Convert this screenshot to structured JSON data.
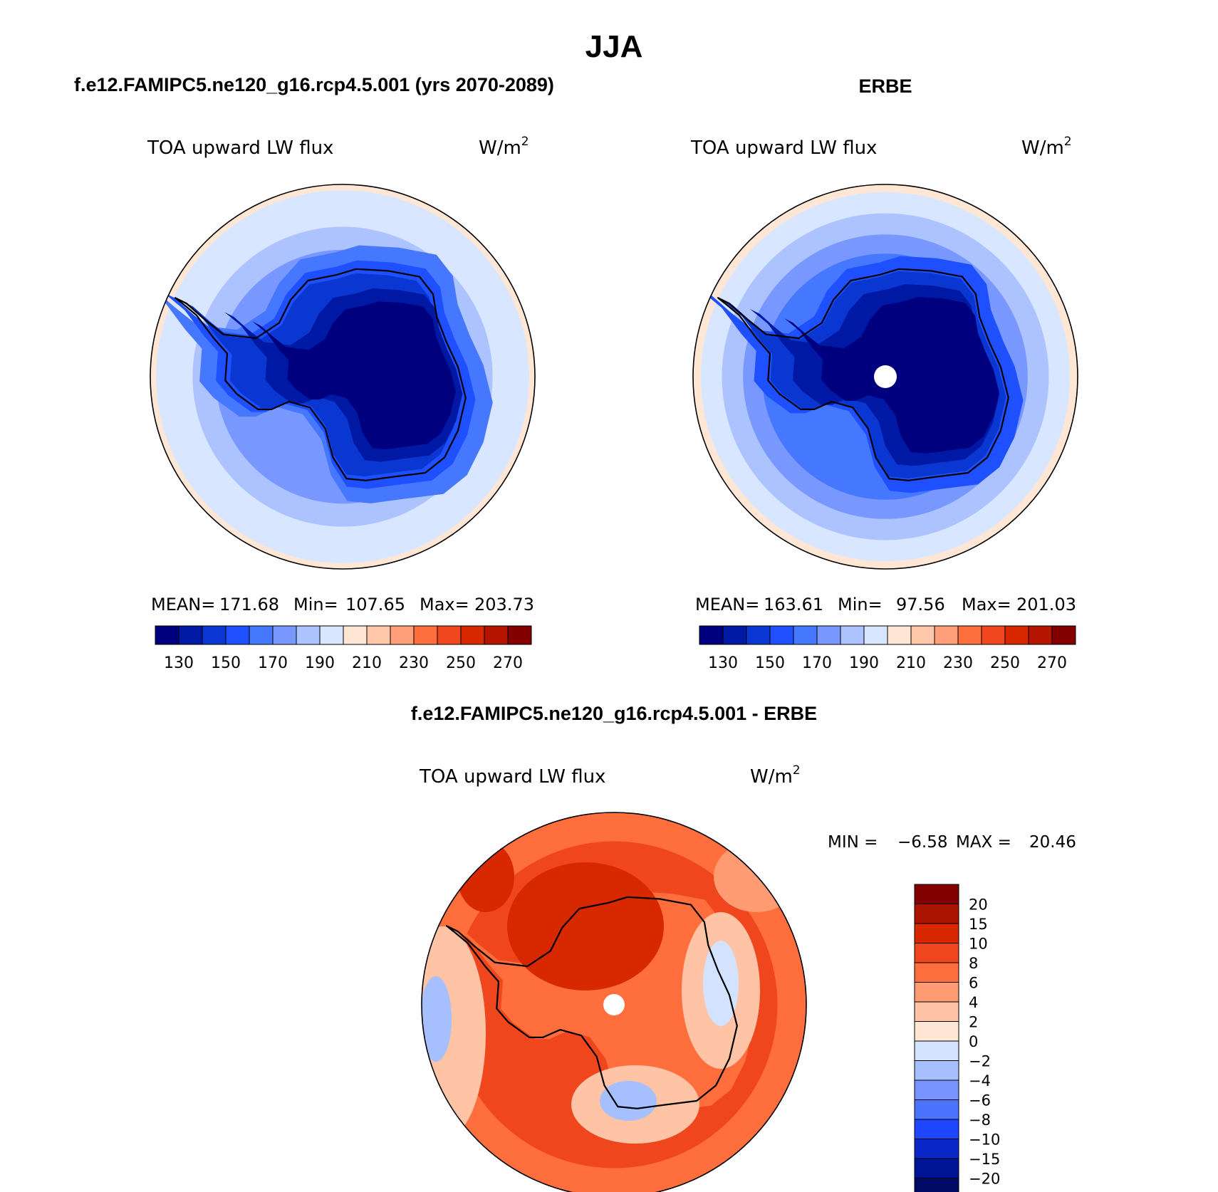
{
  "page_title": "JJA",
  "colors": {
    "seq_scale": [
      "#00007f",
      "#0019a5",
      "#0a37d2",
      "#1e50ff",
      "#4678ff",
      "#7898ff",
      "#adc3ff",
      "#d8e6ff",
      "#ffe6d5",
      "#ffc8aa",
      "#ffa07a",
      "#ff6e3c",
      "#f0461e",
      "#d72800",
      "#b41400",
      "#820000"
    ],
    "diff_scale": [
      "#000a64",
      "#001496",
      "#0a28c8",
      "#1e46ff",
      "#4b73ff",
      "#7895ff",
      "#a5bfff",
      "#d2e2ff",
      "#ffe6d5",
      "#ffc3a5",
      "#ff9b73",
      "#ff6e3c",
      "#f0461e",
      "#d72800",
      "#aa1400",
      "#820000"
    ],
    "coast": "#000000"
  },
  "chart_data": [
    {
      "type": "heatmap",
      "panel_title": "f.e12.FAMIPC5.ne120_g16.rcp4.5.001 (yrs 2070-2089)",
      "variable": "TOA upward LW flux",
      "units": "W/m",
      "units_sup": "2",
      "stats": {
        "mean_label": "MEAN=",
        "mean": "171.68",
        "min_label": "Min=",
        "min": "107.65",
        "max_label": "Max=",
        "max": "203.73"
      },
      "colorbar_ticks": [
        "130",
        "150",
        "170",
        "190",
        "210",
        "230",
        "250",
        "270"
      ],
      "contour_levels": [
        100,
        110,
        120,
        130,
        140,
        150,
        160,
        170,
        180,
        190,
        200,
        210,
        220,
        230,
        240,
        250,
        260,
        270,
        280
      ],
      "projection": "south-polar-stereographic",
      "missing_pole": false
    },
    {
      "type": "heatmap",
      "panel_title": "ERBE",
      "variable": "TOA upward LW flux",
      "units": "W/m",
      "units_sup": "2",
      "stats": {
        "mean_label": "MEAN=",
        "mean": "163.61",
        "min_label": "Min=",
        "min": "97.56",
        "max_label": "Max=",
        "max": "201.03"
      },
      "colorbar_ticks": [
        "130",
        "150",
        "170",
        "190",
        "210",
        "230",
        "250",
        "270"
      ],
      "contour_levels": [
        100,
        110,
        120,
        130,
        140,
        150,
        160,
        170,
        180,
        190,
        200,
        210,
        220,
        230,
        240,
        250,
        260,
        270,
        280
      ],
      "projection": "south-polar-stereographic",
      "missing_pole": true
    },
    {
      "type": "heatmap",
      "panel_title": "f.e12.FAMIPC5.ne120_g16.rcp4.5.001 - ERBE",
      "variable": "TOA upward LW flux",
      "units": "W/m",
      "units_sup": "2",
      "stats": {
        "min_label": "MIN =",
        "min": "−6.58",
        "max_label": "MAX =",
        "max": "20.46"
      },
      "colorbar_ticks": [
        "20",
        "15",
        "10",
        "8",
        "6",
        "4",
        "2",
        "0",
        "−2",
        "−4",
        "−6",
        "−8",
        "−10",
        "−15",
        "−20"
      ],
      "contour_levels": [
        -20,
        -15,
        -10,
        -8,
        -6,
        -4,
        -2,
        0,
        2,
        4,
        6,
        8,
        10,
        15,
        20
      ],
      "projection": "south-polar-stereographic",
      "missing_pole": true
    }
  ]
}
